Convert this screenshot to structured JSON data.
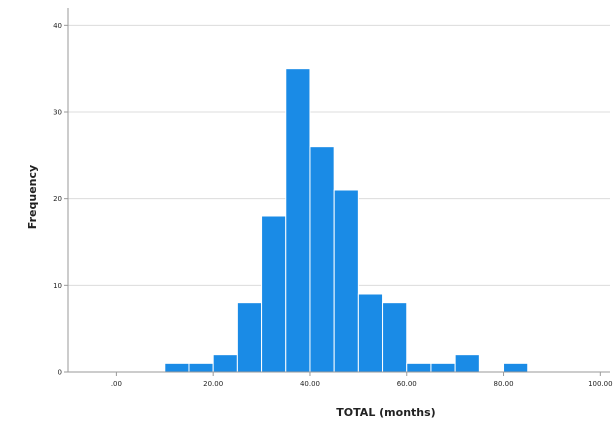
{
  "chart_data": {
    "type": "bar",
    "title": "",
    "xlabel": "TOTAL (months)",
    "ylabel": "Frequency",
    "bin_width": 5,
    "bins": [
      {
        "start": 10,
        "end": 15,
        "count": 1
      },
      {
        "start": 15,
        "end": 20,
        "count": 1
      },
      {
        "start": 20,
        "end": 25,
        "count": 2
      },
      {
        "start": 25,
        "end": 30,
        "count": 8
      },
      {
        "start": 30,
        "end": 35,
        "count": 18
      },
      {
        "start": 35,
        "end": 40,
        "count": 35
      },
      {
        "start": 40,
        "end": 45,
        "count": 26
      },
      {
        "start": 45,
        "end": 50,
        "count": 21
      },
      {
        "start": 50,
        "end": 55,
        "count": 9
      },
      {
        "start": 55,
        "end": 60,
        "count": 8
      },
      {
        "start": 60,
        "end": 65,
        "count": 1
      },
      {
        "start": 65,
        "end": 70,
        "count": 1
      },
      {
        "start": 70,
        "end": 75,
        "count": 2
      },
      {
        "start": 80,
        "end": 85,
        "count": 1
      }
    ],
    "xlim": [
      -10,
      102
    ],
    "ylim": [
      0,
      42
    ],
    "x_ticks": [
      0,
      20,
      40,
      60,
      80,
      100
    ],
    "x_tick_labels": [
      ".00",
      "20.00",
      "40.00",
      "60.00",
      "80.00",
      "100.00"
    ],
    "y_ticks": [
      0,
      10,
      20,
      30,
      40
    ],
    "y_tick_labels": [
      "0",
      "10",
      "20",
      "30",
      "40"
    ],
    "grid": true,
    "legend": "none",
    "bar_color": "#1a8be6"
  }
}
